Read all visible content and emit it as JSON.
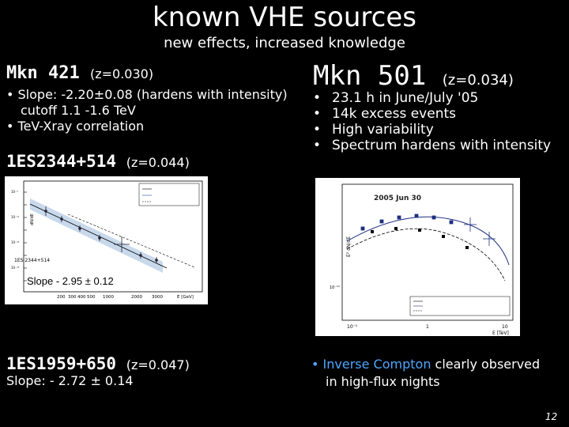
{
  "title": "known VHE sources",
  "subtitle": "new effects, increased knowledge",
  "mkn421": {
    "name": "Mkn 421",
    "z": "(z=0.030)",
    "bullet1_line1": "• Slope: -2.20±0.08 (hardens with intensity)",
    "bullet1_line2": "cutoff 1.1 -1.6 TeV",
    "bullet2": "• TeV-Xray correlation"
  },
  "es2344": {
    "name": "1ES2344+514",
    "z": "(z=0.044)",
    "plot_label": "1ES 2344+514",
    "slope_label": "Slope - 2.95 ± 0.12",
    "x_ticks": [
      "200",
      "300",
      "400",
      "500",
      "1000",
      "2000",
      "3000"
    ],
    "x_unit": "E [GeV]"
  },
  "mkn501": {
    "name": "Mkn 501",
    "z": "(z=0.034)",
    "items": [
      "23.1 h in June/July '05",
      "14k excess events",
      "High variability",
      "Spectrum hardens with intensity"
    ],
    "plot_title": "2005 Jun 30",
    "x_ticks": [
      "10⁻¹",
      "1",
      "10"
    ],
    "x_unit": "E [TeV]"
  },
  "es1959": {
    "name": "1ES1959+650",
    "z": "(z=0.047)",
    "slope": "Slope: - 2.72 ± 0.14"
  },
  "inverse_compton": {
    "highlight": "Inverse Compton",
    "rest": " clearly observed",
    "line2": "in high-flux nights"
  },
  "page_number": "12",
  "colors": {
    "highlight": "#4da6ff",
    "background": "#000000"
  }
}
